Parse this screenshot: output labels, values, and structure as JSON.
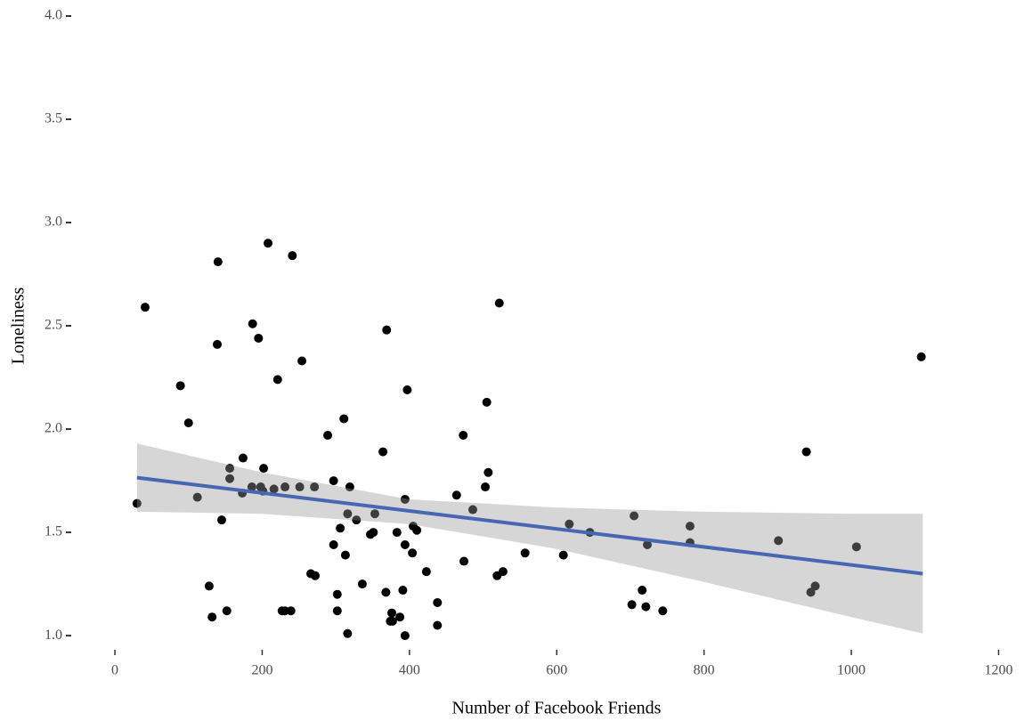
{
  "chart_data": {
    "type": "scatter",
    "x_label": "Number of Facebook Friends",
    "y_label": "Loneliness",
    "xlim": [
      -47.2,
      1234.5
    ],
    "ylim": [
      0.953,
      4.056
    ],
    "xticks": [
      0,
      200,
      400,
      600,
      800,
      1000,
      1200
    ],
    "yticks": [
      {
        "value": 1,
        "label": "1.0"
      },
      {
        "value": 1.5,
        "label": "1.5"
      },
      {
        "value": 2,
        "label": "2.0"
      },
      {
        "value": 2.5,
        "label": "2.5"
      },
      {
        "value": 3,
        "label": "3.0"
      },
      {
        "value": 3.5,
        "label": "3.5"
      },
      {
        "value": 4,
        "label": "4.0"
      }
    ],
    "grid": false,
    "point_color": "#000000",
    "x": [
      30,
      41,
      89,
      100,
      112,
      128,
      132,
      140,
      139,
      145,
      152,
      156,
      156,
      174,
      173,
      186,
      187,
      195,
      198,
      202,
      201,
      208,
      216,
      221,
      227,
      231,
      231,
      239,
      241,
      251,
      254,
      266,
      272,
      271,
      289,
      297,
      297,
      302,
      302,
      306,
      311,
      313,
      316,
      316,
      319,
      328,
      336,
      347,
      351,
      353,
      364,
      368,
      369,
      374,
      376,
      377,
      383,
      387,
      391,
      394,
      394,
      394,
      397,
      404,
      405,
      410,
      423,
      438,
      438,
      464,
      473,
      474,
      486,
      503,
      505,
      507,
      519,
      522,
      527,
      557,
      609,
      617,
      645,
      702,
      705,
      716,
      721,
      723,
      744,
      781,
      781,
      901,
      939,
      945,
      951,
      1007,
      1095
    ],
    "y": [
      1.64,
      2.59,
      2.21,
      2.03,
      1.67,
      1.24,
      1.09,
      2.81,
      2.41,
      1.56,
      1.12,
      1.81,
      1.76,
      1.86,
      1.69,
      1.72,
      2.51,
      2.44,
      1.72,
      1.81,
      1.7,
      2.9,
      1.71,
      2.24,
      1.12,
      1.12,
      1.72,
      1.12,
      2.84,
      1.72,
      2.33,
      1.3,
      1.29,
      1.72,
      1.97,
      1.75,
      1.44,
      1.2,
      1.12,
      1.52,
      2.05,
      1.39,
      1.59,
      1.01,
      1.72,
      1.56,
      1.25,
      1.49,
      1.5,
      1.59,
      1.89,
      1.21,
      2.48,
      1.07,
      1.11,
      1.07,
      1.5,
      1.09,
      1.22,
      1.66,
      1.44,
      1.0,
      2.19,
      1.4,
      1.53,
      1.51,
      1.31,
      1.16,
      1.05,
      1.68,
      1.97,
      1.36,
      1.61,
      1.72,
      2.13,
      1.79,
      1.29,
      2.61,
      1.31,
      1.4,
      1.39,
      1.54,
      1.5,
      1.15,
      1.58,
      1.22,
      1.14,
      1.44,
      1.12,
      1.53,
      1.45,
      1.46,
      1.89,
      1.21,
      1.24,
      1.43,
      2.35
    ],
    "fit": {
      "color": "#4767b4",
      "x": [
        30,
        1097
      ],
      "y": [
        1.765,
        1.3
      ]
    },
    "band": {
      "color": "#999999",
      "x": [
        30,
        200,
        400,
        600,
        800,
        1000,
        1097
      ],
      "lower": [
        1.6,
        1.59,
        1.54,
        1.42,
        1.26,
        1.09,
        1.01
      ],
      "upper": [
        1.93,
        1.79,
        1.66,
        1.62,
        1.6,
        1.59,
        1.59
      ]
    }
  }
}
